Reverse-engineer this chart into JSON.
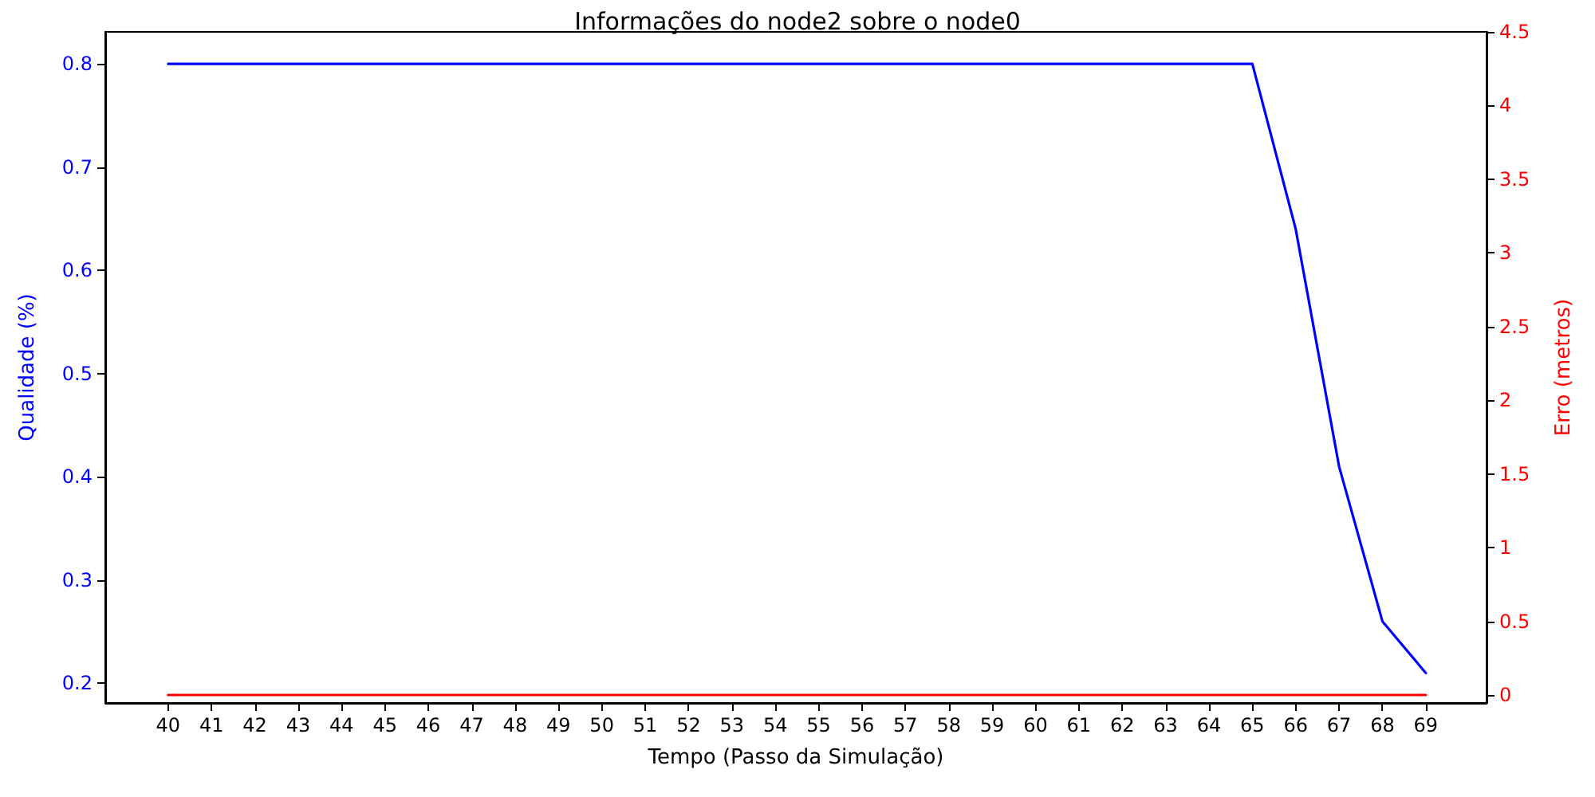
{
  "chart_data": {
    "type": "line",
    "title": "Informações do node2 sobre o node0",
    "xlabel": "Tempo (Passo da Simulação)",
    "ylabel": "Qualidade (%)",
    "y2label": "Erro (metros)",
    "x": [
      40,
      41,
      42,
      43,
      44,
      45,
      46,
      47,
      48,
      49,
      50,
      51,
      52,
      53,
      54,
      55,
      56,
      57,
      58,
      59,
      60,
      61,
      62,
      63,
      64,
      65,
      66,
      67,
      68,
      69
    ],
    "series": [
      {
        "color": "#0000ff",
        "axis": "y",
        "values": [
          0.8,
          0.8,
          0.8,
          0.8,
          0.8,
          0.8,
          0.8,
          0.8,
          0.8,
          0.8,
          0.8,
          0.8,
          0.8,
          0.8,
          0.8,
          0.8,
          0.8,
          0.8,
          0.8,
          0.8,
          0.8,
          0.8,
          0.8,
          0.8,
          0.8,
          0.8,
          0.64,
          0.41,
          0.26,
          0.21
        ]
      },
      {
        "color": "#ff0000",
        "axis": "y2",
        "values": [
          0,
          0,
          0,
          0,
          0,
          0,
          0,
          0,
          0,
          0,
          0,
          0,
          0,
          0,
          0,
          0,
          0,
          0,
          0,
          0,
          0,
          0,
          0,
          0,
          0,
          0,
          0,
          0,
          0,
          0
        ]
      }
    ],
    "xlim": [
      38.55,
      70.4
    ],
    "xticks": [
      40,
      41,
      42,
      43,
      44,
      45,
      46,
      47,
      48,
      49,
      50,
      51,
      52,
      53,
      54,
      55,
      56,
      57,
      58,
      59,
      60,
      61,
      62,
      63,
      64,
      65,
      66,
      67,
      68,
      69
    ],
    "ylim": [
      0.181,
      0.831
    ],
    "yticks": [
      0.2,
      0.3,
      0.4,
      0.5,
      0.6,
      0.7,
      0.8
    ],
    "y2lim": [
      -0.054,
      4.5
    ],
    "y2ticks": [
      0,
      0.5,
      1,
      1.5,
      2,
      2.5,
      3,
      3.5,
      4,
      4.5
    ],
    "grid": false,
    "marker": "none",
    "line_style": "solid"
  }
}
